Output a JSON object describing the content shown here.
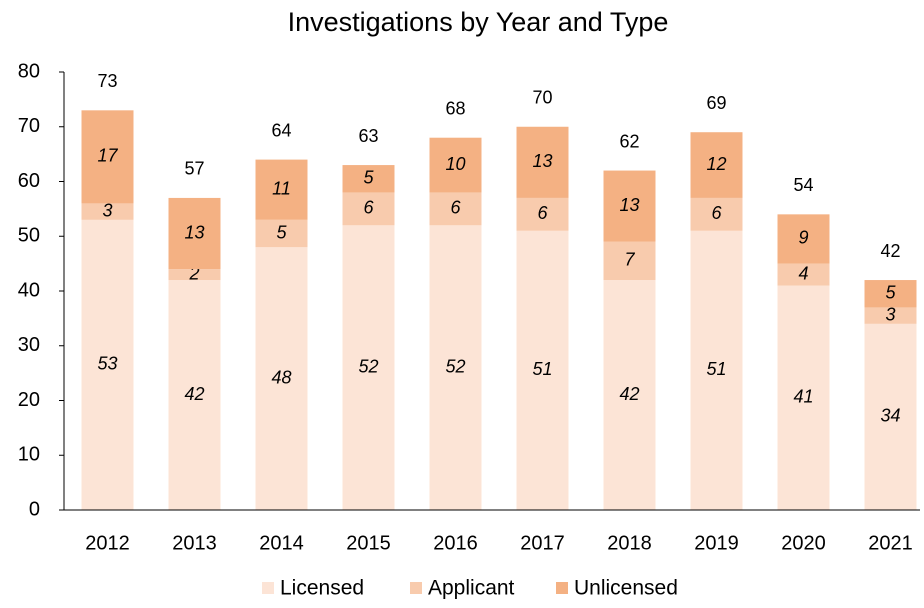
{
  "chart_data": {
    "type": "stacked_bar",
    "title": "Investigations by Year and Type",
    "categories": [
      "2012",
      "2013",
      "2014",
      "2015",
      "2016",
      "2017",
      "2018",
      "2019",
      "2020",
      "2021"
    ],
    "series": [
      {
        "name": "Licensed",
        "color": "#fce4d6",
        "values": [
          53,
          42,
          48,
          52,
          52,
          51,
          42,
          51,
          41,
          34
        ]
      },
      {
        "name": "Applicant",
        "color": "#f8cbad",
        "values": [
          3,
          2,
          5,
          6,
          6,
          6,
          7,
          6,
          4,
          3
        ]
      },
      {
        "name": "Unlicensed",
        "color": "#f4b183",
        "values": [
          17,
          13,
          11,
          5,
          10,
          13,
          13,
          12,
          9,
          5
        ]
      }
    ],
    "totals": [
      73,
      57,
      64,
      63,
      68,
      70,
      62,
      69,
      54,
      42
    ],
    "ylim": [
      0,
      80
    ],
    "yticks": [
      0,
      10,
      20,
      30,
      40,
      50,
      60,
      70,
      80
    ],
    "grid": false,
    "legend": "bottom"
  }
}
